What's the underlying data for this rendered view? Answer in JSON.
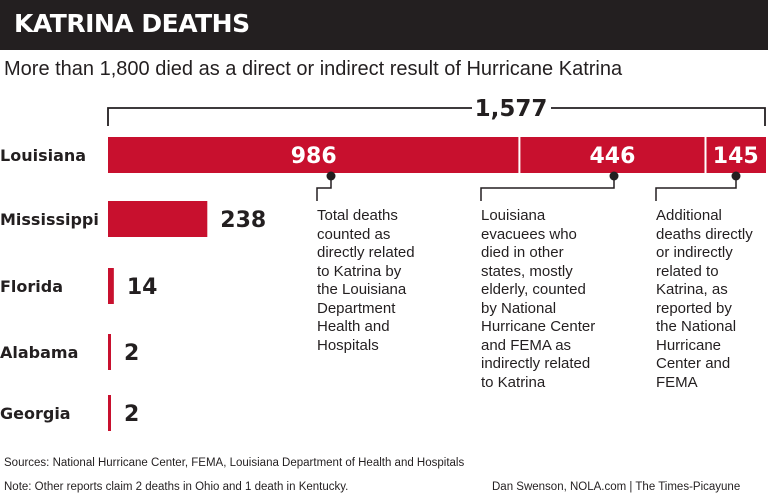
{
  "title": "KATRINA DEATHS",
  "subtitle": "More than 1,800 died as a direct or indirect result of Hurricane Katrina",
  "colors": {
    "bar": "#c8102e",
    "header_bg": "#231f20",
    "text": "#231f20"
  },
  "chart_data": {
    "type": "bar",
    "orientation": "horizontal",
    "categories": [
      "Louisiana",
      "Mississippi",
      "Florida",
      "Alabama",
      "Georgia"
    ],
    "values": [
      1577,
      238,
      14,
      2,
      2
    ],
    "value_labels": [
      "",
      "238",
      "14",
      "2",
      "2"
    ],
    "stacked_breakdown": {
      "category": "Louisiana",
      "total_label": "1,577",
      "segments": [
        {
          "value": 986,
          "label": "986",
          "note": "Total deaths counted as directly related to Katrina by the Louisiana Department Health and Hospitals"
        },
        {
          "value": 446,
          "label": "446",
          "note": "Louisiana evacuees who died in other states, mostly elderly, counted by National Hurricane Center and FEMA as indirectly related to Katrina"
        },
        {
          "value": 145,
          "label": "145",
          "note": "Additional deaths directly or indirectly related to Katrina, as reported by the National Hurricane Center and FEMA"
        }
      ]
    }
  },
  "annotations": {
    "a1": "Total deaths\ncounted as\ndirectly related\nto Katrina by\nthe Louisiana\nDepartment\nHealth and\nHospitals",
    "a2": "Louisiana\nevacuees who\ndied in other\nstates, mostly\nelderly, counted\nby National\nHurricane Center\nand FEMA as\nindirectly related\nto Katrina",
    "a3": "Additional\ndeaths directly\nor indirectly\nrelated to\nKatrina, as\nreported by\nthe National\nHurricane\nCenter and\nFEMA"
  },
  "footer": {
    "sources": "Sources: National Hurricane Center, FEMA, Louisiana Department of Health and Hospitals",
    "note": "Note: Other reports claim 2 deaths in Ohio and 1 death in Kentucky.",
    "credit": "Dan Swenson, NOLA.com | The Times-Picayune"
  }
}
